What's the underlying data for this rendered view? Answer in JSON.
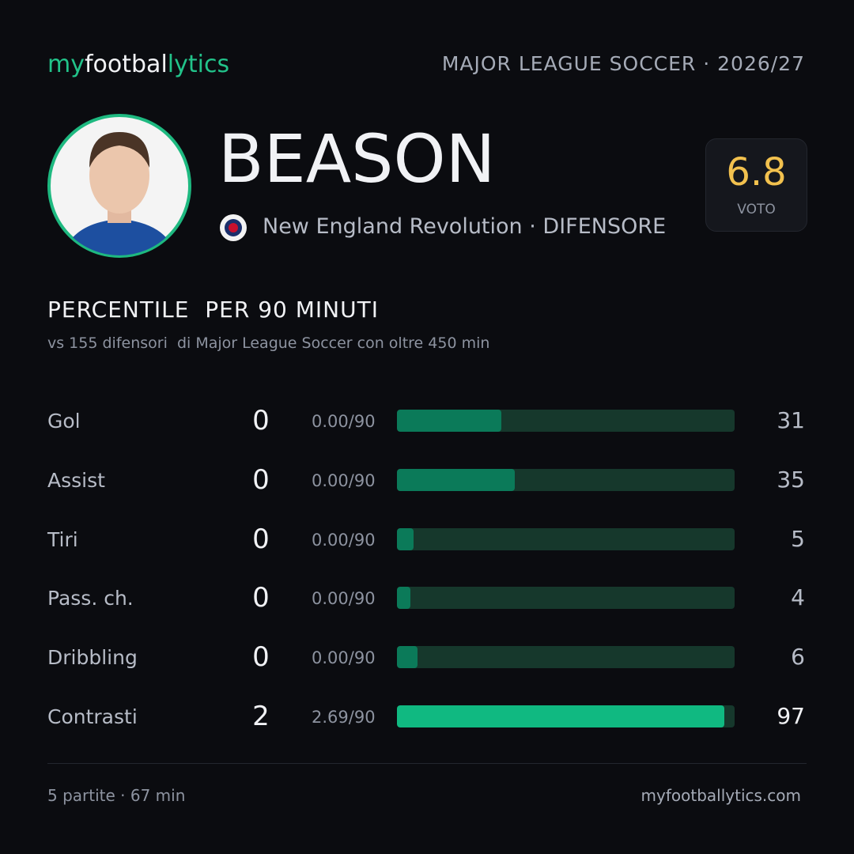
{
  "header": {
    "logo": [
      "my",
      "footbal",
      "lytics"
    ],
    "league": "MAJOR LEAGUE SOCCER · 2026/27"
  },
  "player": {
    "name": "BEASON",
    "team": "New England Revolution",
    "role": "· DIFENSORE"
  },
  "rating": {
    "value": "6.8",
    "label": "VOTO"
  },
  "section": {
    "title": "PERCENTILE  PER 90 MINUTI",
    "subtitle": "vs 155 difensori  di Major League Soccer con oltre 450 min"
  },
  "rows": [
    {
      "label": "Gol",
      "value": 0,
      "per90": "0.00/90",
      "percentile": 31,
      "color": "#0b7a59"
    },
    {
      "label": "Assist",
      "value": 0,
      "per90": "0.00/90",
      "percentile": 35,
      "color": "#0b7a59"
    },
    {
      "label": "Tiri",
      "value": 0,
      "per90": "0.00/90",
      "percentile": 5,
      "color": "#0b7a59"
    },
    {
      "label": "Pass. ch.",
      "value": 0,
      "per90": "0.00/90",
      "percentile": 4,
      "color": "#0b7a59"
    },
    {
      "label": "Dribbling",
      "value": 0,
      "per90": "0.00/90",
      "percentile": 6,
      "color": "#0b7a59"
    },
    {
      "label": "Contrasti",
      "value": 2,
      "per90": "2.69/90",
      "percentile": 97,
      "color": "#10b981"
    }
  ],
  "footer": {
    "stats": "5 partite · 67 min",
    "site": "myfootballytics.com"
  }
}
